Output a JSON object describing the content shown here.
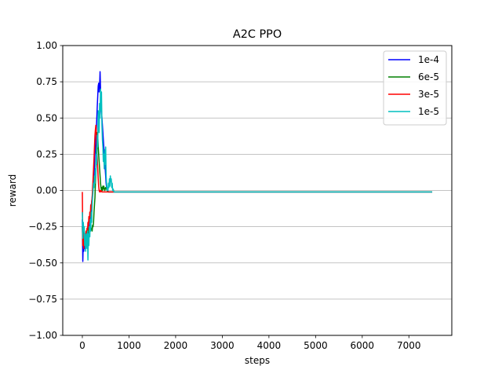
{
  "chart_data": {
    "type": "line",
    "title": "A2C PPO",
    "xlabel": "steps",
    "ylabel": "reward",
    "xlim": [
      -420,
      7920
    ],
    "ylim": [
      -1.0,
      1.0
    ],
    "xticks": [
      0,
      1000,
      2000,
      3000,
      4000,
      5000,
      6000,
      7000
    ],
    "xtick_labels": [
      "0",
      "1000",
      "2000",
      "3000",
      "4000",
      "5000",
      "6000",
      "7000"
    ],
    "yticks": [
      -1.0,
      -0.75,
      -0.5,
      -0.25,
      0.0,
      0.25,
      0.5,
      0.75,
      1.0
    ],
    "ytick_labels": [
      "−1.00",
      "−0.75",
      "−0.50",
      "−0.25",
      "0.00",
      "0.25",
      "0.50",
      "0.75",
      "1.00"
    ],
    "grid": "y",
    "legend_position": "top-right",
    "series": [
      {
        "name": "1e-4",
        "color": "#0000ff",
        "x": [
          0,
          10,
          20,
          30,
          40,
          50,
          60,
          70,
          80,
          90,
          100,
          110,
          120,
          130,
          140,
          150,
          160,
          170,
          180,
          190,
          200,
          210,
          220,
          230,
          240,
          250,
          260,
          270,
          280,
          290,
          300,
          310,
          320,
          330,
          340,
          350,
          360,
          370,
          380,
          390,
          400,
          410,
          420,
          430,
          440,
          450,
          460,
          470,
          480,
          490,
          500,
          510,
          520,
          540,
          560,
          600,
          700,
          1000,
          2000,
          3000,
          4000,
          5000,
          6000,
          7000,
          7500
        ],
        "y": [
          -0.2,
          -0.49,
          -0.35,
          -0.42,
          -0.38,
          -0.4,
          -0.36,
          -0.38,
          -0.33,
          -0.35,
          -0.3,
          -0.32,
          -0.28,
          -0.3,
          -0.25,
          -0.27,
          -0.22,
          -0.18,
          -0.15,
          -0.1,
          -0.08,
          -0.05,
          -0.02,
          0.02,
          0.05,
          0.1,
          0.18,
          0.25,
          0.3,
          0.35,
          0.42,
          0.5,
          0.58,
          0.65,
          0.72,
          0.74,
          0.68,
          0.72,
          0.82,
          0.7,
          0.6,
          0.55,
          0.5,
          0.45,
          0.4,
          0.35,
          0.3,
          0.25,
          0.2,
          0.15,
          0.1,
          0.05,
          0.02,
          0.0,
          -0.01,
          -0.01,
          -0.01,
          -0.01,
          -0.01,
          -0.01,
          -0.01,
          -0.01,
          -0.01,
          -0.01,
          -0.01
        ]
      },
      {
        "name": "6e-5",
        "color": "#008000",
        "x": [
          0,
          10,
          20,
          30,
          40,
          50,
          60,
          70,
          80,
          90,
          100,
          110,
          120,
          130,
          140,
          150,
          160,
          170,
          180,
          190,
          200,
          210,
          220,
          230,
          240,
          250,
          260,
          270,
          280,
          290,
          300,
          310,
          320,
          330,
          340,
          350,
          360,
          370,
          380,
          390,
          400,
          410,
          420,
          430,
          440,
          450,
          460,
          480,
          500,
          550,
          600,
          700,
          1000,
          2000,
          3000,
          4000,
          5000,
          6000,
          7000,
          7500
        ],
        "y": [
          -0.25,
          -0.35,
          -0.3,
          -0.32,
          -0.28,
          -0.33,
          -0.3,
          -0.31,
          -0.29,
          -0.32,
          -0.28,
          -0.3,
          -0.27,
          -0.29,
          -0.26,
          -0.3,
          -0.27,
          -0.28,
          -0.25,
          -0.27,
          -0.26,
          -0.28,
          -0.24,
          -0.25,
          -0.22,
          -0.15,
          -0.1,
          -0.05,
          0.05,
          0.15,
          0.25,
          0.35,
          0.4,
          0.38,
          0.3,
          0.25,
          0.2,
          0.15,
          0.1,
          0.05,
          0.02,
          0.0,
          0.02,
          0.0,
          0.03,
          0.01,
          0.03,
          0.0,
          0.02,
          -0.01,
          -0.01,
          -0.01,
          -0.01,
          -0.01,
          -0.01,
          -0.01,
          -0.01,
          -0.01,
          -0.01,
          -0.01
        ]
      },
      {
        "name": "3e-5",
        "color": "#ff0000",
        "x": [
          0,
          10,
          20,
          30,
          40,
          50,
          60,
          70,
          80,
          90,
          100,
          110,
          120,
          130,
          140,
          150,
          160,
          170,
          180,
          190,
          200,
          210,
          220,
          230,
          240,
          250,
          260,
          270,
          280,
          290,
          300,
          310,
          320,
          330,
          340,
          350,
          360,
          370,
          380,
          390,
          400,
          420,
          440,
          460,
          480,
          500,
          550,
          600,
          700,
          1000,
          2000,
          3000,
          4000,
          5000,
          6000,
          7000,
          7500
        ],
        "y": [
          -0.01,
          -0.38,
          -0.3,
          -0.4,
          -0.32,
          -0.35,
          -0.3,
          -0.33,
          -0.28,
          -0.31,
          -0.26,
          -0.29,
          -0.22,
          -0.25,
          -0.18,
          -0.22,
          -0.15,
          -0.18,
          -0.1,
          -0.13,
          -0.08,
          -0.05,
          0.02,
          0.08,
          0.15,
          0.22,
          0.3,
          0.38,
          0.42,
          0.45,
          0.4,
          0.3,
          0.22,
          0.15,
          0.08,
          0.03,
          0.0,
          -0.01,
          0.0,
          -0.01,
          0.0,
          -0.01,
          -0.01,
          -0.01,
          -0.01,
          -0.01,
          -0.01,
          -0.01,
          -0.01,
          -0.01,
          -0.01,
          -0.01,
          -0.01,
          -0.01,
          -0.01,
          -0.01,
          -0.01
        ]
      },
      {
        "name": "1e-5",
        "color": "#00bfbf",
        "x": [
          0,
          10,
          20,
          30,
          40,
          50,
          60,
          70,
          80,
          90,
          100,
          110,
          120,
          130,
          140,
          150,
          160,
          170,
          180,
          190,
          200,
          210,
          220,
          230,
          240,
          250,
          260,
          270,
          280,
          290,
          300,
          310,
          320,
          330,
          340,
          350,
          360,
          370,
          380,
          390,
          400,
          410,
          420,
          430,
          440,
          450,
          460,
          470,
          480,
          490,
          500,
          510,
          520,
          530,
          540,
          550,
          560,
          570,
          580,
          590,
          600,
          610,
          620,
          630,
          640,
          650,
          660,
          680,
          700,
          800,
          1000,
          2000,
          3000,
          4000,
          5000,
          6000,
          7000,
          7500
        ],
        "y": [
          -0.15,
          -0.33,
          -0.22,
          -0.28,
          -0.25,
          -0.38,
          -0.3,
          -0.42,
          -0.35,
          -0.3,
          -0.4,
          -0.28,
          -0.48,
          -0.3,
          -0.38,
          -0.25,
          -0.32,
          -0.2,
          -0.28,
          -0.15,
          -0.22,
          -0.1,
          -0.05,
          0.0,
          0.05,
          0.02,
          0.1,
          0.05,
          0.15,
          0.1,
          0.25,
          0.18,
          0.38,
          0.3,
          0.55,
          0.45,
          0.4,
          0.6,
          0.5,
          0.7,
          0.55,
          0.68,
          0.45,
          0.35,
          0.3,
          0.2,
          0.25,
          0.15,
          0.28,
          0.18,
          0.3,
          0.1,
          0.05,
          0.0,
          0.02,
          0.0,
          0.05,
          0.02,
          0.08,
          0.03,
          0.1,
          0.06,
          0.08,
          0.02,
          0.05,
          0.0,
          0.01,
          -0.01,
          -0.01,
          -0.01,
          -0.01,
          -0.01,
          -0.01,
          -0.01,
          -0.01,
          -0.01,
          -0.01,
          -0.01
        ]
      }
    ]
  }
}
